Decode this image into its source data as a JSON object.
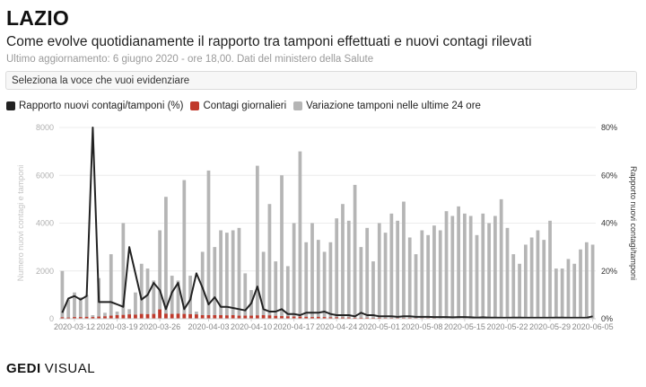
{
  "header": {
    "title": "LAZIO",
    "subtitle": "Come evolve quotidianamente il rapporto tra tamponi effettuati e nuovi contagi rilevati",
    "updated": "Ultimo aggiornamento: 6 giugno 2020 - ore 18,00. Dati del ministero della Salute"
  },
  "selector": {
    "placeholder": "Seleziona la voce che vuoi evidenziare"
  },
  "legend": {
    "ratio": "Rapporto nuovi contagi/tamponi (%)",
    "cases": "Contagi giornalieri",
    "tests": "Variazione tamponi nelle ultime 24 ore"
  },
  "colors": {
    "ratio": "#222222",
    "cases": "#c0392b",
    "tests": "#b5b5b5"
  },
  "logo": {
    "gedi": "GEDI",
    "visual": "VISUAL"
  },
  "chart_data": {
    "type": "bar",
    "start_date": "2020-03-10",
    "end_date": "2020-06-06",
    "x_tick_labels": [
      "2020-03-12",
      "2020-03-19",
      "2020-03-26",
      "2020-04-03",
      "2020-04-10",
      "2020-04-17",
      "2020-04-24",
      "2020-05-01",
      "2020-05-08",
      "2020-05-15",
      "2020-05-22",
      "2020-05-29",
      "2020-06-05"
    ],
    "ylabel_left": "Numero nuovi contagi e tamponi",
    "ylabel_right": "Rapporto nuovi contagi/tamponi",
    "ylim_left": [
      0,
      8000
    ],
    "ylim_right": [
      0,
      80
    ],
    "y_ticks_left": [
      "0",
      "2000",
      "4000",
      "6000",
      "8000"
    ],
    "y_ticks_right": [
      "0%",
      "20%",
      "40%",
      "60%",
      "80%"
    ],
    "series": [
      {
        "name": "Variazione tamponi nelle ultime 24 ore",
        "type": "bar",
        "values": [
          2000,
          800,
          1100,
          900,
          1000,
          150,
          1700,
          250,
          2700,
          300,
          4000,
          400,
          1100,
          2300,
          2100,
          1600,
          3700,
          5100,
          1800,
          1600,
          5800,
          1800,
          300,
          2800,
          6200,
          3000,
          3700,
          3600,
          3700,
          3800,
          1900,
          1200,
          6400,
          2800,
          4800,
          2400,
          6000,
          2200,
          4000,
          7000,
          3200,
          4000,
          3300,
          2800,
          3200,
          4200,
          4800,
          4100,
          5600,
          3000,
          3800,
          2400,
          4000,
          3600,
          4400,
          4100,
          4900,
          3400,
          2700,
          3700,
          3500,
          3900,
          3700,
          4500,
          4300,
          4700,
          4400,
          4300,
          3500,
          4400,
          4000,
          4300,
          5000,
          3800,
          2700,
          2300,
          3100,
          3400,
          3700,
          3300,
          4100,
          2100,
          2100,
          2500,
          2300,
          2900,
          3200,
          3100
        ]
      },
      {
        "name": "Contagi giornalieri",
        "type": "bar",
        "values": [
          60,
          50,
          70,
          70,
          80,
          70,
          90,
          100,
          130,
          150,
          160,
          180,
          170,
          200,
          190,
          200,
          390,
          210,
          200,
          210,
          200,
          190,
          180,
          150,
          150,
          150,
          150,
          140,
          150,
          130,
          130,
          130,
          140,
          150,
          140,
          120,
          110,
          100,
          90,
          90,
          80,
          70,
          80,
          70,
          60,
          60,
          50,
          50,
          40,
          40,
          40,
          35,
          40,
          30,
          30,
          30,
          30,
          30,
          25,
          25,
          25,
          25,
          20,
          20,
          20,
          20,
          20,
          20,
          15,
          15,
          15,
          15,
          15,
          15,
          15,
          15,
          15,
          15,
          15,
          10,
          10,
          10,
          10,
          10,
          10,
          10,
          10,
          10
        ]
      },
      {
        "name": "Rapporto nuovi contagi/tamponi (%)",
        "type": "line",
        "axis": "right",
        "values": [
          2.5,
          8.5,
          9.5,
          8,
          9.5,
          80,
          7,
          7,
          7,
          6,
          5,
          30,
          19,
          8,
          10,
          15,
          12,
          4,
          11,
          15,
          4,
          8,
          19,
          13,
          6,
          9,
          5,
          5,
          4.5,
          4,
          3.5,
          6.5,
          13.5,
          4,
          3,
          3,
          4,
          2,
          2,
          1.5,
          2.5,
          2.5,
          2.5,
          3,
          2,
          1.5,
          1.5,
          1.5,
          1,
          2.5,
          1.5,
          1.5,
          1,
          1,
          1,
          0.8,
          1,
          1,
          0.8,
          0.8,
          0.8,
          0.7,
          0.7,
          0.7,
          0.6,
          0.7,
          0.7,
          0.6,
          0.5,
          0.6,
          0.5,
          0.5,
          0.4,
          0.4,
          0.5,
          0.5,
          0.4,
          0.4,
          0.4,
          0.4,
          0.4,
          0.5,
          0.5,
          0.4,
          0.4,
          0.4,
          0.4,
          1
        ]
      }
    ]
  }
}
